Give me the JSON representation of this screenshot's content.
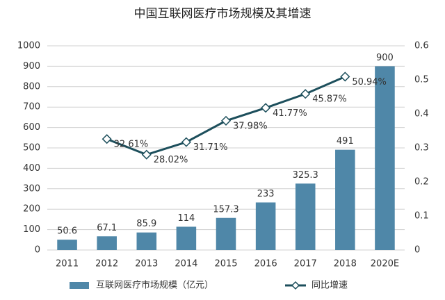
{
  "chart_data": {
    "type": "bar",
    "title": "中国互联网医疗市场规模及其增速",
    "categories": [
      "2011",
      "2012",
      "2013",
      "2014",
      "2015",
      "2016",
      "2017",
      "2018",
      "2020E"
    ],
    "series": [
      {
        "name": "互联网医疗市场规模（亿元）",
        "type": "bar",
        "color": "#4f87a8",
        "values": [
          50.6,
          67.1,
          85.9,
          114,
          157.3,
          233,
          325.3,
          491,
          900
        ]
      },
      {
        "name": "同比增速",
        "type": "line",
        "axis": "y2",
        "color": "#1d4f5c",
        "values": [
          null,
          0.3261,
          0.2802,
          0.3171,
          0.3798,
          0.4177,
          0.4587,
          0.5094,
          null
        ],
        "value_labels": [
          null,
          "32.61%",
          "28.02%",
          "31.71%",
          "37.98%",
          "41.77%",
          "45.87%",
          "50.94%",
          null
        ]
      }
    ],
    "ylim": [
      0,
      1000
    ],
    "yticks": [
      0,
      100,
      200,
      300,
      400,
      500,
      600,
      700,
      800,
      900,
      1000
    ],
    "y2lim": [
      0,
      0.6
    ],
    "y2ticks": [
      0,
      0.1,
      0.2,
      0.3,
      0.4,
      0.5,
      0.6
    ],
    "grid": true,
    "legend": "bottom"
  }
}
